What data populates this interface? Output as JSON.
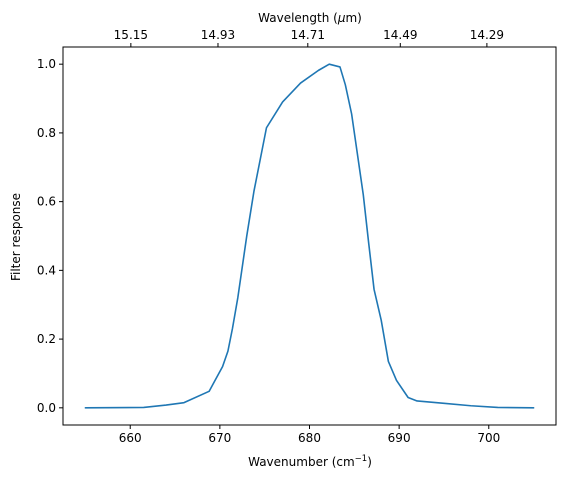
{
  "chart_data": {
    "type": "line",
    "xlabel_main": "Wavenumber (cm",
    "xlabel_sup": "−1",
    "xlabel_close": ")",
    "xlabel_top_main": "Wavelength (",
    "xlabel_top_mu": "μ",
    "xlabel_top_close": "m)",
    "ylabel": "Filter response",
    "xlim": [
      652.5,
      707.5
    ],
    "ylim": [
      -0.05,
      1.05
    ],
    "xticks": [
      660,
      670,
      680,
      690,
      700
    ],
    "xtick_labels": [
      "660",
      "670",
      "680",
      "690",
      "700"
    ],
    "yticks": [
      0.0,
      0.2,
      0.4,
      0.6,
      0.8,
      1.0
    ],
    "ytick_labels": [
      "0.0",
      "0.2",
      "0.4",
      "0.6",
      "0.8",
      "1.0"
    ],
    "top_ticks": [
      {
        "label": "15.15",
        "wavenumber": 660.07
      },
      {
        "label": "14.93",
        "wavenumber": 669.79
      },
      {
        "label": "14.71",
        "wavenumber": 679.81
      },
      {
        "label": "14.49",
        "wavenumber": 690.13
      },
      {
        "label": "14.29",
        "wavenumber": 699.79
      }
    ],
    "series": [
      {
        "color": "#1f77b4",
        "x": [
          655,
          661.5,
          664,
          666,
          668.8,
          670.3,
          670.9,
          671.4,
          672,
          673,
          673.8,
          675.2,
          677,
          679,
          681,
          682.2,
          683.4,
          684,
          684.7,
          686,
          686.6,
          687.2,
          688,
          688.8,
          689.7,
          691,
          692,
          695,
          698,
          701,
          705
        ],
        "y": [
          0.0,
          0.001,
          0.008,
          0.015,
          0.048,
          0.12,
          0.165,
          0.23,
          0.32,
          0.5,
          0.63,
          0.815,
          0.89,
          0.945,
          0.982,
          1.0,
          0.992,
          0.94,
          0.855,
          0.62,
          0.48,
          0.345,
          0.255,
          0.135,
          0.08,
          0.03,
          0.02,
          0.013,
          0.006,
          0.001,
          0.0
        ]
      }
    ],
    "grid": false,
    "legend": false
  },
  "colors": {
    "line": "#1f77b4",
    "axes": "#000000",
    "background": "#ffffff"
  }
}
